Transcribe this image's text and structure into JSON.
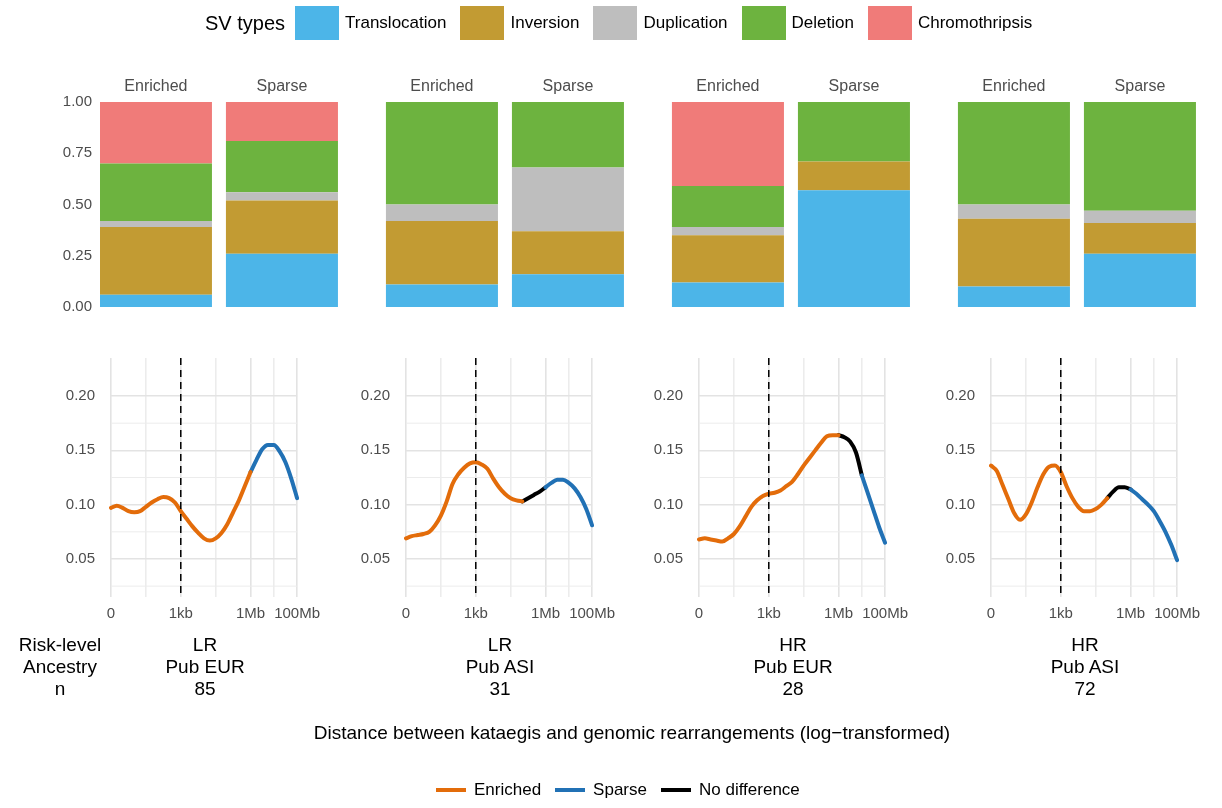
{
  "chart_data": [
    {
      "type": "bar",
      "stacked": true,
      "categories": [
        "Enriched",
        "Sparse",
        "Enriched",
        "Sparse",
        "Enriched",
        "Sparse",
        "Enriched",
        "Sparse"
      ],
      "ylim": [
        0,
        1
      ],
      "yticks": [
        {
          "value": 0,
          "label": "0.00"
        },
        {
          "value": 0.25,
          "label": "0.25"
        },
        {
          "value": 0.5,
          "label": "0.50"
        },
        {
          "value": 0.75,
          "label": "0.75"
        },
        {
          "value": 1,
          "label": "1.00"
        }
      ],
      "legend": "top",
      "legend_title": "SV types",
      "series": [
        {
          "name": "Translocation",
          "color": "#4cb5e8",
          "values": [
            0.06,
            0.26,
            0.11,
            0.16,
            0.12,
            0.57,
            0.1,
            0.26
          ]
        },
        {
          "name": "Inversion",
          "color": "#c29b33",
          "values": [
            0.33,
            0.26,
            0.31,
            0.21,
            0.23,
            0.14,
            0.33,
            0.15
          ]
        },
        {
          "name": "Duplication",
          "color": "#bebebe",
          "values": [
            0.03,
            0.04,
            0.08,
            0.31,
            0.04,
            0,
            0.07,
            0.06
          ]
        },
        {
          "name": "Deletion",
          "color": "#6db33f",
          "values": [
            0.28,
            0.25,
            0.5,
            0.32,
            0.2,
            0.29,
            0.5,
            0.53
          ]
        },
        {
          "name": "Chromothripsis",
          "color": "#f07b79",
          "values": [
            0.3,
            0.19,
            0,
            0,
            0.41,
            0,
            0,
            0
          ]
        }
      ]
    },
    {
      "type": "line",
      "categories": [
        "0",
        null,
        null,
        null,
        null,
        null,
        null,
        null,
        null,
        null,
        null,
        null,
        "1kb",
        null,
        null,
        null,
        null,
        null,
        null,
        null,
        null,
        null,
        null,
        null,
        "1Mb",
        null,
        null,
        null,
        null,
        null,
        null,
        null,
        "100Mb"
      ],
      "ylim": [
        0.015,
        0.235
      ],
      "yticks": [
        {
          "value": 0.05,
          "label": "0.05"
        },
        {
          "value": 0.1,
          "label": "0.10"
        },
        {
          "value": 0.15,
          "label": "0.15"
        },
        {
          "value": 0.2,
          "label": "0.20"
        }
      ],
      "grid": true,
      "ref_lines": [
        {
          "axis": "x",
          "value": "1kb",
          "label": null,
          "color": "#000000",
          "line_style": "dashed"
        }
      ],
      "annotations": [
        "Risk-level",
        "Ancestry",
        "n",
        "LR",
        "Pub EUR",
        "85"
      ],
      "series": [
        {
          "color": "#e36c0a",
          "values": [
            0.097,
            0.099,
            0.097,
            0.094,
            0.093,
            0.094,
            0.098,
            0.102,
            0.105,
            0.107,
            0.106,
            0.102,
            0.094,
            0.087,
            0.08,
            0.074,
            0.069,
            0.067,
            0.069,
            0.074,
            0.082,
            0.093,
            0.104,
            0.117,
            0.13,
            null,
            null,
            null,
            null,
            null,
            null,
            null,
            null
          ]
        },
        {
          "color": "#2171b5",
          "values": [
            null,
            null,
            null,
            null,
            null,
            null,
            null,
            null,
            null,
            null,
            null,
            null,
            null,
            null,
            null,
            null,
            null,
            null,
            null,
            null,
            null,
            null,
            null,
            null,
            0.13,
            0.141,
            0.151,
            0.155,
            0.155,
            0.149,
            0.139,
            0.124,
            0.106
          ]
        }
      ]
    },
    {
      "type": "line",
      "categories": [
        "0",
        null,
        null,
        null,
        null,
        null,
        null,
        null,
        null,
        null,
        null,
        null,
        "1kb",
        null,
        null,
        null,
        null,
        null,
        null,
        null,
        null,
        null,
        null,
        null,
        "1Mb",
        null,
        null,
        null,
        null,
        null,
        null,
        null,
        "100Mb"
      ],
      "ylim": [
        0.015,
        0.235
      ],
      "yticks": [
        {
          "value": 0.05,
          "label": "0.05"
        },
        {
          "value": 0.1,
          "label": "0.10"
        },
        {
          "value": 0.15,
          "label": "0.15"
        },
        {
          "value": 0.2,
          "label": "0.20"
        }
      ],
      "grid": true,
      "legend": "bottom",
      "xlabel": "Distance between kataegis and genomic rearrangements (log−transformed)",
      "ref_lines": [
        {
          "axis": "x",
          "value": "1kb",
          "label": null,
          "color": "#000000",
          "line_style": "dashed"
        }
      ],
      "annotations": [
        "LR",
        "Pub ASI",
        "31"
      ],
      "series": [
        {
          "name": "Enriched",
          "color": "#e36c0a",
          "values": [
            0.069,
            0.071,
            0.072,
            0.073,
            0.075,
            0.081,
            0.09,
            0.103,
            0.119,
            0.128,
            0.134,
            0.138,
            0.139,
            0.137,
            0.133,
            0.124,
            0.116,
            0.11,
            0.106,
            0.104,
            0.103,
            null,
            null,
            null,
            null,
            null,
            null,
            null,
            null,
            null,
            null,
            null,
            null
          ]
        },
        {
          "name": "Sparse",
          "color": "#2171b5",
          "values": [
            null,
            null,
            null,
            null,
            null,
            null,
            null,
            null,
            null,
            null,
            null,
            null,
            null,
            null,
            null,
            null,
            null,
            null,
            null,
            null,
            null,
            null,
            null,
            null,
            0.116,
            0.12,
            0.123,
            0.123,
            0.12,
            0.115,
            0.107,
            0.096,
            0.081
          ]
        },
        {
          "name": "No difference",
          "color": "#000000",
          "values": [
            null,
            null,
            null,
            null,
            null,
            null,
            null,
            null,
            null,
            null,
            null,
            null,
            null,
            null,
            null,
            null,
            null,
            null,
            null,
            null,
            0.103,
            0.106,
            0.109,
            0.112,
            0.116,
            null,
            null,
            null,
            null,
            null,
            null,
            null,
            null
          ]
        }
      ]
    },
    {
      "type": "line",
      "categories": [
        "0",
        null,
        null,
        null,
        null,
        null,
        null,
        null,
        null,
        null,
        null,
        null,
        "1kb",
        null,
        null,
        null,
        null,
        null,
        null,
        null,
        null,
        null,
        null,
        null,
        "1Mb",
        null,
        null,
        null,
        null,
        null,
        null,
        null,
        "100Mb"
      ],
      "ylim": [
        0.015,
        0.235
      ],
      "yticks": [
        {
          "value": 0.05,
          "label": "0.05"
        },
        {
          "value": 0.1,
          "label": "0.10"
        },
        {
          "value": 0.15,
          "label": "0.15"
        },
        {
          "value": 0.2,
          "label": "0.20"
        }
      ],
      "grid": true,
      "ref_lines": [
        {
          "axis": "x",
          "value": "1kb",
          "label": null,
          "color": "#000000",
          "line_style": "dashed"
        }
      ],
      "annotations": [
        "HR",
        "Pub EUR",
        "28"
      ],
      "series": [
        {
          "color": "#e36c0a",
          "values": [
            0.068,
            0.069,
            0.068,
            0.067,
            0.066,
            0.069,
            0.073,
            0.08,
            0.089,
            0.098,
            0.104,
            0.108,
            0.11,
            0.111,
            0.113,
            0.117,
            0.121,
            0.128,
            0.136,
            0.143,
            0.15,
            0.157,
            0.163,
            0.164,
            0.164,
            null,
            null,
            null,
            null,
            null,
            null,
            null,
            null
          ]
        },
        {
          "color": "#2171b5",
          "values": [
            null,
            null,
            null,
            null,
            null,
            null,
            null,
            null,
            null,
            null,
            null,
            null,
            null,
            null,
            null,
            null,
            null,
            null,
            null,
            null,
            null,
            null,
            null,
            null,
            null,
            null,
            null,
            null,
            0.127,
            0.111,
            0.095,
            0.079,
            0.065
          ]
        },
        {
          "color": "#000000",
          "values": [
            null,
            null,
            null,
            null,
            null,
            null,
            null,
            null,
            null,
            null,
            null,
            null,
            null,
            null,
            null,
            null,
            null,
            null,
            null,
            null,
            null,
            null,
            null,
            null,
            0.164,
            0.162,
            0.158,
            0.148,
            0.127,
            null,
            null,
            null,
            null
          ]
        }
      ]
    },
    {
      "type": "line",
      "categories": [
        "0",
        null,
        null,
        null,
        null,
        null,
        null,
        null,
        null,
        null,
        null,
        null,
        "1kb",
        null,
        null,
        null,
        null,
        null,
        null,
        null,
        null,
        null,
        null,
        null,
        "1Mb",
        null,
        null,
        null,
        null,
        null,
        null,
        null,
        "100Mb"
      ],
      "ylim": [
        0.015,
        0.235
      ],
      "yticks": [
        {
          "value": 0.05,
          "label": "0.05"
        },
        {
          "value": 0.1,
          "label": "0.10"
        },
        {
          "value": 0.15,
          "label": "0.15"
        },
        {
          "value": 0.2,
          "label": "0.20"
        }
      ],
      "grid": true,
      "ref_lines": [
        {
          "axis": "x",
          "value": "1kb",
          "label": null,
          "color": "#000000",
          "line_style": "dashed"
        }
      ],
      "annotations": [
        "HR",
        "Pub ASI",
        "72"
      ],
      "series": [
        {
          "color": "#e36c0a",
          "values": [
            0.136,
            0.131,
            0.118,
            0.105,
            0.092,
            0.086,
            0.091,
            0.102,
            0.116,
            0.128,
            0.135,
            0.136,
            0.13,
            0.117,
            0.106,
            0.098,
            0.094,
            0.094,
            0.096,
            0.1,
            0.106,
            null,
            null,
            null,
            null,
            null,
            null,
            null,
            null,
            null,
            null,
            null,
            null
          ]
        },
        {
          "color": "#2171b5",
          "values": [
            null,
            null,
            null,
            null,
            null,
            null,
            null,
            null,
            null,
            null,
            null,
            null,
            null,
            null,
            null,
            null,
            null,
            null,
            null,
            null,
            null,
            null,
            null,
            null,
            0.114,
            0.11,
            0.105,
            0.1,
            0.094,
            0.085,
            0.075,
            0.063,
            0.049
          ]
        },
        {
          "color": "#000000",
          "values": [
            null,
            null,
            null,
            null,
            null,
            null,
            null,
            null,
            null,
            null,
            null,
            null,
            null,
            null,
            null,
            null,
            null,
            null,
            null,
            null,
            0.106,
            0.112,
            0.116,
            0.116,
            0.114,
            null,
            null,
            null,
            null,
            null,
            null,
            null,
            null
          ]
        }
      ]
    }
  ]
}
